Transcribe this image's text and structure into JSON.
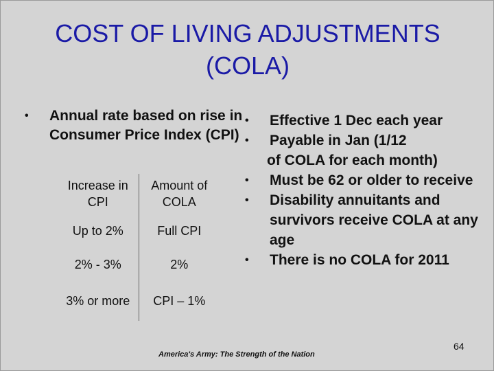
{
  "title": {
    "line1": "COST OF LIVING ADJUSTMENTS",
    "line2": "(COLA)"
  },
  "left_bullet": "Annual rate based on rise in Consumer Price Index (CPI)",
  "table": {
    "headers": [
      "Increase in CPI",
      "Amount of COLA"
    ],
    "rows": [
      [
        "Up to 2%",
        "Full CPI"
      ],
      [
        "2% - 3%",
        "2%"
      ],
      [
        "3% or more",
        "CPI – 1%"
      ]
    ]
  },
  "right_bullets": [
    "Effective 1 Dec each year",
    "Payable in Jan (1/12",
    "Must be 62 or older to receive",
    "Disability annuitants and survivors receive COLA at any age",
    "There is no COLA for 2011"
  ],
  "right_continuation": "of COLA for each month)",
  "bullet_glyph": "•",
  "footer": "America's Army: The Strength of the Nation",
  "page_number": "64",
  "colors": {
    "title": "#1a1aa6",
    "background": "#d4d4d4"
  }
}
